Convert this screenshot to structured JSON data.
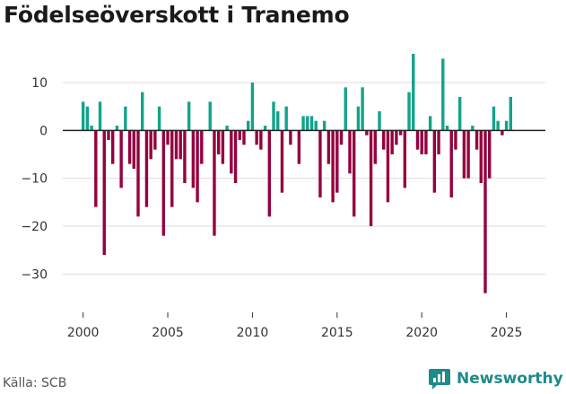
{
  "header": {
    "title": "Födelseöverskott i Tranemo"
  },
  "footer": {
    "source": "Källa: SCB",
    "brand": "Newsworthy"
  },
  "colors": {
    "positive": "#12a38a",
    "negative": "#95003f",
    "grid": "#dddddd",
    "zero": "#222222",
    "brand": "#1f8a8a"
  },
  "chart_data": {
    "type": "bar",
    "title": "Födelseöverskott i Tranemo",
    "xlabel": "",
    "ylabel": "",
    "unit": "monthly",
    "x_start": 2000.0,
    "x_step": 0.25,
    "xlim": [
      1998.8,
      2027.3
    ],
    "ylim": [
      -38,
      16
    ],
    "yticks": [
      10,
      0,
      -10,
      -20,
      -30
    ],
    "ytick_labels": [
      "10",
      "0",
      "−10",
      "−20",
      "−30"
    ],
    "xticks": [
      2000,
      2005,
      2010,
      2015,
      2020,
      2025
    ],
    "xtick_labels": [
      "2000",
      "2005",
      "2010",
      "2015",
      "2020",
      "2025"
    ],
    "values": [
      6,
      5,
      1,
      -16,
      6,
      -26,
      -2,
      -7,
      1,
      -12,
      5,
      -7,
      -8,
      -18,
      8,
      -16,
      -6,
      -4,
      5,
      -22,
      -3,
      -16,
      -6,
      -6,
      -11,
      6,
      -12,
      -15,
      -7,
      0,
      6,
      -22,
      -5,
      -7,
      1,
      -9,
      -11,
      -2,
      -3,
      2,
      10,
      -3,
      -4,
      1,
      -18,
      6,
      4,
      -13,
      5,
      -3,
      0,
      -7,
      3,
      3,
      3,
      2,
      -14,
      2,
      -7,
      -15,
      -13,
      -3,
      9,
      -9,
      -18,
      5,
      9,
      -1,
      -20,
      -7,
      4,
      -4,
      -15,
      -5,
      -3,
      -1,
      -12,
      8,
      16,
      -4,
      -5,
      -5,
      3,
      -13,
      -5,
      15,
      1,
      -14,
      -4,
      7,
      -10,
      -10,
      1,
      -4,
      -11,
      -34,
      -10,
      5,
      2,
      -1,
      2,
      7
    ]
  }
}
